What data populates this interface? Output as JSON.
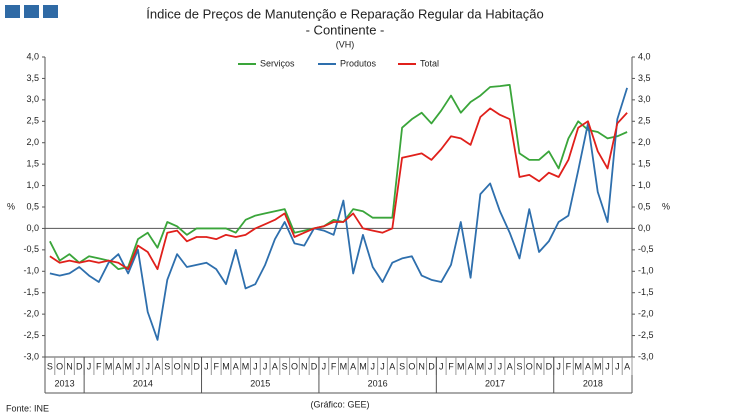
{
  "chart_data": {
    "type": "line",
    "title": "Índice de Preços de Manutenção e Reparação Regular da Habitação",
    "subtitle": "- Continente -",
    "unit_note": "(VH)",
    "y_label": "%",
    "y2_label": "%",
    "source": "Fonte: INE",
    "credit": "(Gráfico: GEE)",
    "categories": [
      "S",
      "O",
      "N",
      "D",
      "J",
      "F",
      "M",
      "A",
      "M",
      "J",
      "J",
      "A",
      "S",
      "O",
      "N",
      "D",
      "J",
      "F",
      "M",
      "A",
      "M",
      "J",
      "J",
      "A",
      "S",
      "O",
      "N",
      "D",
      "J",
      "F",
      "M",
      "A",
      "M",
      "J",
      "J",
      "A",
      "S",
      "O",
      "N",
      "D",
      "J",
      "F",
      "M",
      "A",
      "M",
      "J",
      "J",
      "A",
      "S",
      "O",
      "N",
      "D",
      "J",
      "F",
      "M",
      "A",
      "M",
      "J",
      "J",
      "A"
    ],
    "years": [
      "2013",
      "2014",
      "2015",
      "2016",
      "2017",
      "2018"
    ],
    "series": [
      {
        "name": "Serviços",
        "color": "#3aa53a",
        "values": [
          -0.3,
          -0.75,
          -0.6,
          -0.8,
          -0.65,
          -0.7,
          -0.75,
          -0.95,
          -0.9,
          -0.25,
          -0.1,
          -0.45,
          0.15,
          0.05,
          -0.15,
          0.0,
          0.0,
          0.0,
          0.0,
          -0.1,
          0.2,
          0.3,
          0.35,
          0.4,
          0.45,
          -0.1,
          -0.05,
          0.0,
          0.05,
          0.2,
          0.15,
          0.45,
          0.4,
          0.25,
          0.25,
          0.25,
          2.35,
          2.55,
          2.7,
          2.45,
          2.75,
          3.1,
          2.7,
          2.95,
          3.1,
          3.3,
          3.32,
          3.35,
          1.75,
          1.6,
          1.6,
          1.8,
          1.4,
          2.1,
          2.5,
          2.3,
          2.25,
          2.1,
          2.15,
          2.25
        ]
      },
      {
        "name": "Produtos",
        "color": "#2e6fad",
        "values": [
          -1.05,
          -1.1,
          -1.05,
          -0.9,
          -1.1,
          -1.25,
          -0.8,
          -0.6,
          -1.05,
          -0.5,
          -1.95,
          -2.6,
          -1.2,
          -0.6,
          -0.9,
          -0.85,
          -0.8,
          -0.95,
          -1.3,
          -0.5,
          -1.4,
          -1.3,
          -0.85,
          -0.25,
          0.15,
          -0.35,
          -0.4,
          0.0,
          -0.05,
          -0.15,
          0.65,
          -1.05,
          -0.15,
          -0.9,
          -1.25,
          -0.8,
          -0.7,
          -0.65,
          -1.1,
          -1.2,
          -1.25,
          -0.85,
          0.15,
          -1.15,
          0.8,
          1.05,
          0.4,
          -0.1,
          -0.7,
          0.45,
          -0.55,
          -0.3,
          0.15,
          0.3,
          1.35,
          2.45,
          0.85,
          0.15,
          2.55,
          3.28
        ]
      },
      {
        "name": "Total",
        "color": "#e0201b",
        "values": [
          -0.65,
          -0.8,
          -0.75,
          -0.8,
          -0.75,
          -0.8,
          -0.75,
          -0.8,
          -0.95,
          -0.4,
          -0.55,
          -0.95,
          -0.1,
          -0.05,
          -0.3,
          -0.2,
          -0.2,
          -0.25,
          -0.15,
          -0.2,
          -0.15,
          0.0,
          0.1,
          0.2,
          0.35,
          -0.2,
          -0.1,
          0.0,
          0.05,
          0.15,
          0.15,
          0.35,
          0.0,
          -0.05,
          -0.1,
          0.0,
          1.65,
          1.7,
          1.75,
          1.6,
          1.85,
          2.15,
          2.1,
          1.95,
          2.6,
          2.8,
          2.65,
          2.55,
          1.2,
          1.25,
          1.1,
          1.3,
          1.2,
          1.6,
          2.35,
          2.5,
          1.8,
          1.4,
          2.45,
          2.7
        ]
      }
    ],
    "ylim": [
      -3.0,
      4.0
    ],
    "yticks": [
      {
        "value": 4.0,
        "label": "4,0"
      },
      {
        "value": 3.5,
        "label": "3,5"
      },
      {
        "value": 3.0,
        "label": "3,0"
      },
      {
        "value": 2.5,
        "label": "2,5"
      },
      {
        "value": 2.0,
        "label": "2,0"
      },
      {
        "value": 1.5,
        "label": "1,5"
      },
      {
        "value": 1.0,
        "label": "1,0"
      },
      {
        "value": 0.5,
        "label": "0,5"
      },
      {
        "value": 0.0,
        "label": "0,0"
      },
      {
        "value": -0.5,
        "label": "-0,5"
      },
      {
        "value": -1.0,
        "label": "-1,0"
      },
      {
        "value": -1.5,
        "label": "-1,5"
      },
      {
        "value": -2.0,
        "label": "-2,0"
      },
      {
        "value": -2.5,
        "label": "-2,5"
      },
      {
        "value": -3.0,
        "label": "-3,0"
      }
    ],
    "y2lim": [
      -3.0,
      4.0
    ],
    "y2ticks": [
      {
        "value": 4.0,
        "label": "4,0"
      },
      {
        "value": 3.5,
        "label": "3,5"
      },
      {
        "value": 3.0,
        "label": "3,0"
      },
      {
        "value": 2.5,
        "label": "2,5"
      },
      {
        "value": 2.0,
        "label": "2,0"
      },
      {
        "value": 1.5,
        "label": "1,5"
      },
      {
        "value": 1.0,
        "label": "1,0"
      },
      {
        "value": 0.5,
        "label": "0,5"
      },
      {
        "value": 0.0,
        "label": "0,0"
      },
      {
        "value": -0.5,
        "label": "-0,5"
      },
      {
        "value": -1.0,
        "label": "-1,0"
      },
      {
        "value": -1.5,
        "label": "-1,5"
      },
      {
        "value": -2.0,
        "label": "-2,0"
      },
      {
        "value": -2.5,
        "label": "-2,5"
      },
      {
        "value": -3.0,
        "label": "-3,0"
      }
    ],
    "grid": false,
    "legend": "top"
  }
}
